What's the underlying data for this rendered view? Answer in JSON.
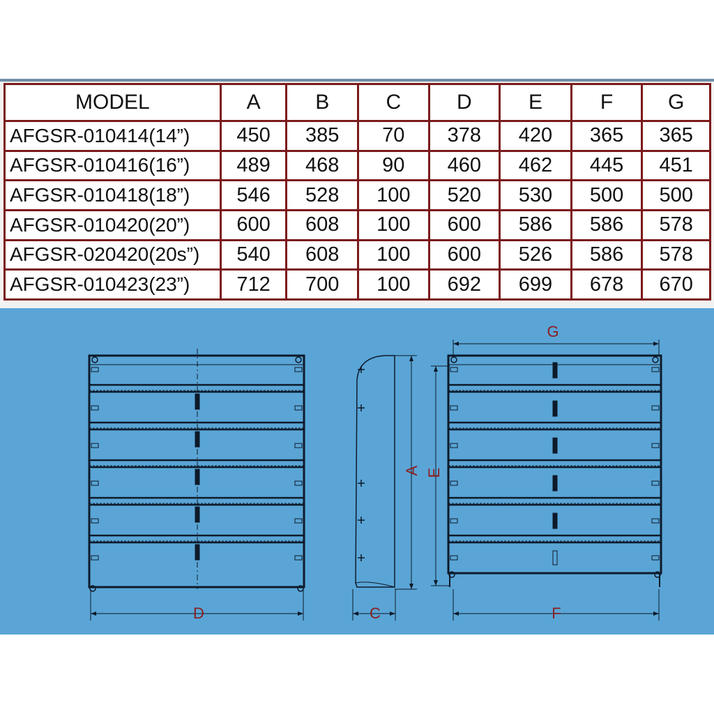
{
  "table": {
    "headers": [
      "MODEL",
      "A",
      "B",
      "C",
      "D",
      "E",
      "F",
      "G"
    ],
    "rows": [
      [
        "AFGSR-010414(14”)",
        "450",
        "385",
        "70",
        "378",
        "420",
        "365",
        "365"
      ],
      [
        "AFGSR-010416(16”)",
        "489",
        "468",
        "90",
        "460",
        "462",
        "445",
        "451"
      ],
      [
        "AFGSR-010418(18”)",
        "546",
        "528",
        "100",
        "520",
        "530",
        "500",
        "500"
      ],
      [
        "AFGSR-010420(20”)",
        "600",
        "608",
        "100",
        "600",
        "586",
        "586",
        "578"
      ],
      [
        "AFGSR-020420(20s”)",
        "540",
        "608",
        "100",
        "600",
        "526",
        "586",
        "578"
      ],
      [
        "AFGSR-010423(23”)",
        "712",
        "700",
        "100",
        "692",
        "699",
        "678",
        "670"
      ]
    ]
  },
  "drawing": {
    "labels": {
      "D": "D",
      "C": "C",
      "F": "F",
      "G": "G",
      "A": "A",
      "E": "E"
    },
    "colors": {
      "background": "#5aa5d6",
      "line": "#0d1a2a",
      "dimension_label": "#8b1d1d",
      "table_border": "#7b1a1c"
    }
  }
}
